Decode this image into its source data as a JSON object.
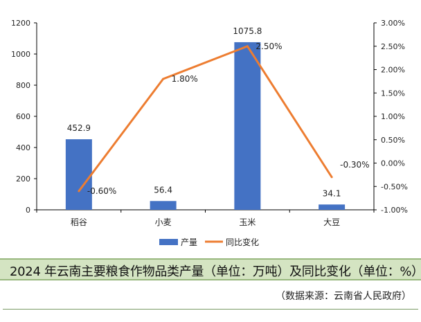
{
  "chart_data": {
    "type": "bar+line",
    "categories": [
      "稻谷",
      "小麦",
      "玉米",
      "大豆"
    ],
    "series": [
      {
        "name": "产量",
        "type": "bar",
        "axis": "left",
        "color": "#4472c4",
        "values": [
          452.9,
          56.4,
          1075.8,
          34.1
        ],
        "labels": [
          "452.9",
          "56.4",
          "1075.8",
          "34.1"
        ]
      },
      {
        "name": "同比变化",
        "type": "line",
        "axis": "right",
        "color": "#ed7d31",
        "values": [
          -0.6,
          1.8,
          2.5,
          -0.3
        ],
        "labels": [
          "-0.60%",
          "1.80%",
          "2.50%",
          "-0.30%"
        ]
      }
    ],
    "left_axis": {
      "min": 0,
      "max": 1200,
      "step": 200,
      "ticks": [
        "0",
        "200",
        "400",
        "600",
        "800",
        "1000",
        "1200"
      ]
    },
    "right_axis": {
      "min": -1.0,
      "max": 3.0,
      "step": 0.5,
      "ticks": [
        "-1.00%",
        "-0.50%",
        "0.00%",
        "0.50%",
        "1.00%",
        "1.50%",
        "2.00%",
        "2.50%",
        "3.00%"
      ]
    },
    "grid": false,
    "legend_position": "bottom"
  },
  "caption": {
    "title": "2024 年云南主要粮食作物品类产量（单位：万吨）及同比变化（单位：%）",
    "source": "（数据来源：云南省人民政府）"
  }
}
